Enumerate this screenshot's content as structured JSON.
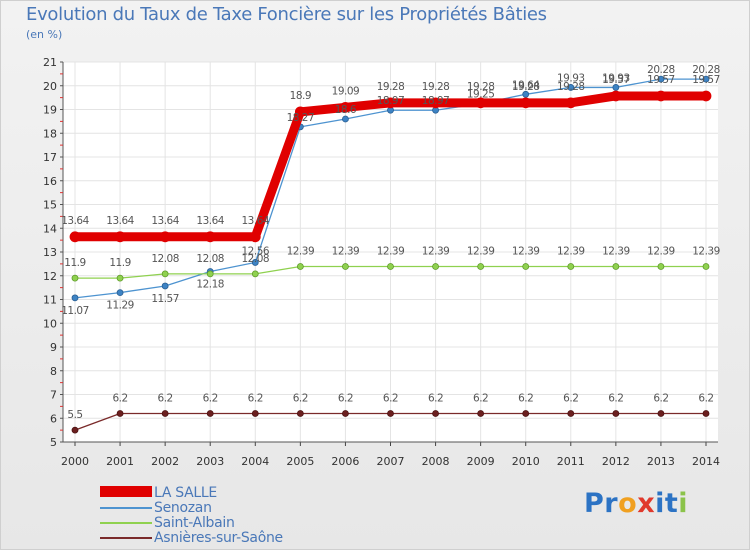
{
  "title": "Evolution du Taux de Taxe Foncière sur les Propriétés Bâties",
  "unit_label": "(en %)",
  "logo": {
    "text": "Proxiti",
    "letters": [
      "P",
      "r",
      "o",
      "x",
      "i",
      "t",
      "i"
    ],
    "colors": [
      "#2c73c4",
      "#2c73c4",
      "#f0a020",
      "#e0392c",
      "#2c73c4",
      "#2c73c4",
      "#8bc34a"
    ]
  },
  "chart_data": {
    "type": "line",
    "title": "Evolution du Taux de Taxe Foncière sur les Propriétés Bâties",
    "ylabel": "(en %)",
    "xlabel": "",
    "ylim": [
      5,
      21
    ],
    "yticks": [
      5,
      6,
      7,
      8,
      9,
      10,
      11,
      12,
      13,
      14,
      15,
      16,
      17,
      18,
      19,
      20,
      21
    ],
    "x": [
      "2000",
      "2001",
      "2002",
      "2003",
      "2004",
      "2005",
      "2006",
      "2007",
      "2008",
      "2009",
      "2010",
      "2011",
      "2012",
      "2013",
      "2014"
    ],
    "grid": true,
    "legend_position": "bottom-left",
    "series": [
      {
        "name": "LA SALLE",
        "color": "#e00000",
        "labels": [
          "13.64",
          "13.64",
          "13.64",
          "13.64",
          "13.64",
          "18.9",
          "19.09",
          "19.28",
          "19.28",
          "19.28",
          "19.28",
          "19.28",
          "19.57",
          "19.57",
          "19.57"
        ],
        "values": [
          13.64,
          13.64,
          13.64,
          13.64,
          13.64,
          18.9,
          19.09,
          19.28,
          19.28,
          19.28,
          19.28,
          19.28,
          19.57,
          19.57,
          19.57
        ]
      },
      {
        "name": "Senozan",
        "color": "#4d93d0",
        "labels": [
          "11.07",
          "11.29",
          "11.57",
          "12.18",
          "12.56",
          "18.27",
          "18.6",
          "18.97",
          "18.97",
          "19.25",
          "19.64",
          "19.93",
          "19.93",
          "20.28",
          "20.28"
        ],
        "values": [
          11.07,
          11.29,
          11.57,
          12.18,
          12.56,
          18.27,
          18.6,
          18.97,
          18.97,
          19.25,
          19.64,
          19.93,
          19.93,
          20.28,
          20.28
        ]
      },
      {
        "name": "Saint-Albain",
        "color": "#8fd14f",
        "labels": [
          "11.9",
          "11.9",
          "12.08",
          "12.08",
          "12.08",
          "12.39",
          "12.39",
          "12.39",
          "12.39",
          "12.39",
          "12.39",
          "12.39",
          "12.39",
          "12.39",
          "12.39"
        ],
        "values": [
          11.9,
          11.9,
          12.08,
          12.08,
          12.08,
          12.39,
          12.39,
          12.39,
          12.39,
          12.39,
          12.39,
          12.39,
          12.39,
          12.39,
          12.39
        ]
      },
      {
        "name": "Asnières-sur-Saône",
        "color": "#7a2a2a",
        "labels": [
          "5.5",
          "6.2",
          "6.2",
          "6.2",
          "6.2",
          "6.2",
          "6.2",
          "6.2",
          "6.2",
          "6.2",
          "6.2",
          "6.2",
          "6.2",
          "6.2",
          "6.2"
        ],
        "values": [
          5.5,
          6.2,
          6.2,
          6.2,
          6.2,
          6.2,
          6.2,
          6.2,
          6.2,
          6.2,
          6.2,
          6.2,
          6.2,
          6.2,
          6.2
        ]
      }
    ]
  }
}
